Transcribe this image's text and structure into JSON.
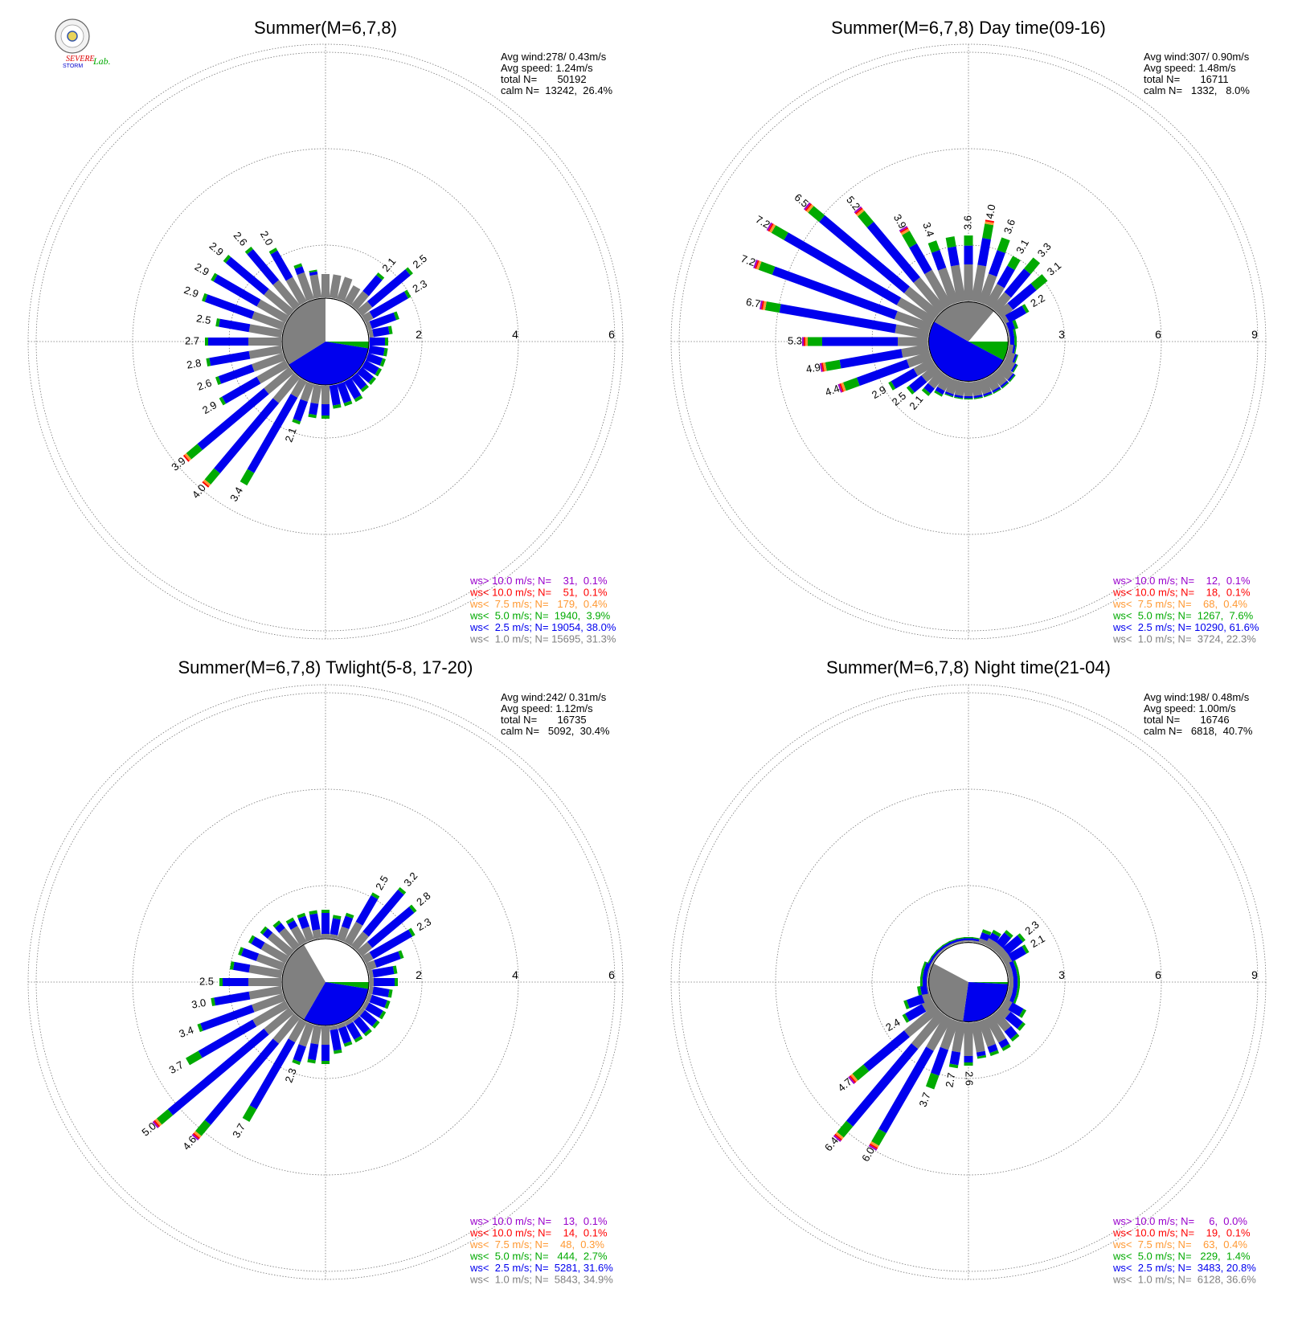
{
  "logo": {
    "text_1": "SEVERE",
    "text_2": "STORM",
    "text_3": "Lab."
  },
  "legend_rows": [
    {
      "text": "ws> 10.0 m/s; N=",
      "color": "#9900cc"
    },
    {
      "text": "ws< 10.0 m/s; N=",
      "color": "#ff0000"
    },
    {
      "text": "ws<  7.5 m/s; N=",
      "color": "#ff9933"
    },
    {
      "text": "ws<  5.0 m/s; N=",
      "color": "#00aa00"
    },
    {
      "text": "ws<  2.5 m/s; N=",
      "color": "#0000ee"
    },
    {
      "text": "ws<  1.0 m/s; N=",
      "color": "#808080"
    }
  ],
  "chart_data": [
    {
      "type": "wind-rose",
      "title": "Summer(M=6,7,8)",
      "stats": [
        "Avg wind:278/ 0.43m/s",
        "Avg speed: 1.24m/s",
        "total N=       50192",
        "calm N=  13242,  26.4%"
      ],
      "radial_ticks": [
        "2",
        "4",
        "6"
      ],
      "rmax": 6,
      "calm_fraction": 0.264,
      "bins": 36,
      "direction_step_deg": 10,
      "legend": [
        [
          "31",
          "0.1%"
        ],
        [
          "51",
          "0.1%"
        ],
        [
          "179",
          "0.4%"
        ],
        [
          "1940",
          "3.9%"
        ],
        [
          "19054",
          "38.0%"
        ],
        [
          "15695",
          "31.3%"
        ]
      ],
      "inner_sectors": [
        {
          "color": "#00aa00",
          "start": 90,
          "end": 99
        },
        {
          "color": "#0000ee",
          "start": 99,
          "end": 238
        },
        {
          "color": "#808080",
          "start": 238,
          "end": 360
        }
      ],
      "spokes": [
        [
          0,
          1.4,
          1.4
        ],
        [
          10,
          1.4,
          1.3
        ],
        [
          20,
          1.4,
          1.3
        ],
        [
          30,
          1.3,
          1.3
        ],
        [
          40,
          1.3,
          1.8,
          "2.1"
        ],
        [
          50,
          1.2,
          2.3,
          "2.5"
        ],
        [
          60,
          1.1,
          2.0,
          "2.3"
        ],
        [
          70,
          1.0,
          1.6
        ],
        [
          80,
          1.0,
          1.4
        ],
        [
          90,
          0.9,
          1.3
        ],
        [
          100,
          0.9,
          1.3
        ],
        [
          110,
          0.9,
          1.3
        ],
        [
          120,
          0.9,
          1.3
        ],
        [
          130,
          0.9,
          1.3
        ],
        [
          140,
          0.9,
          1.3
        ],
        [
          150,
          0.9,
          1.4
        ],
        [
          160,
          0.9,
          1.4
        ],
        [
          170,
          0.9,
          1.4
        ],
        [
          180,
          1.3,
          1.6
        ],
        [
          190,
          1.3,
          1.6
        ],
        [
          200,
          1.3,
          1.8,
          "2.1"
        ],
        [
          210,
          1.3,
          3.4,
          "3.4"
        ],
        [
          220,
          1.6,
          3.8,
          "4.0"
        ],
        [
          230,
          1.6,
          3.7,
          "3.9"
        ],
        [
          240,
          1.6,
          2.5,
          "2.9"
        ],
        [
          250,
          1.6,
          2.4,
          "2.6"
        ],
        [
          260,
          1.6,
          2.5,
          "2.8"
        ],
        [
          270,
          1.6,
          2.5,
          "2.7"
        ],
        [
          280,
          1.6,
          2.3,
          "2.5"
        ],
        [
          290,
          1.6,
          2.7,
          "2.9"
        ],
        [
          300,
          1.6,
          2.7,
          "2.9"
        ],
        [
          310,
          1.6,
          2.7,
          "2.9"
        ],
        [
          320,
          1.6,
          2.5,
          "2.6"
        ],
        [
          330,
          1.5,
          2.2,
          "2.0"
        ],
        [
          340,
          1.5,
          1.7
        ],
        [
          350,
          1.4,
          1.5
        ]
      ]
    },
    {
      "type": "wind-rose",
      "title": "Summer(M=6,7,8) Day time(09-16)",
      "stats": [
        "Avg wind:307/ 0.90m/s",
        "Avg speed: 1.48m/s",
        "total N=       16711",
        "calm N=   1332,   8.0%"
      ],
      "radial_ticks": [
        "3",
        "6",
        "9"
      ],
      "rmax": 9,
      "calm_fraction": 0.08,
      "bins": 36,
      "direction_step_deg": 10,
      "legend": [
        [
          "12",
          "0.1%"
        ],
        [
          "18",
          "0.1%"
        ],
        [
          "68",
          "0.4%"
        ],
        [
          "1267",
          "7.6%"
        ],
        [
          "10290",
          "61.6%"
        ],
        [
          "3724",
          "22.3%"
        ]
      ],
      "inner_sectors": [
        {
          "color": "#00aa00",
          "start": 90,
          "end": 118
        },
        {
          "color": "#0000ee",
          "start": 118,
          "end": 300
        },
        {
          "color": "#808080",
          "start": 300,
          "end": 360
        },
        {
          "color": "#808080",
          "start": 0,
          "end": 40
        }
      ],
      "spokes": [
        [
          0,
          2.4,
          3.3,
          "3.6"
        ],
        [
          10,
          2.4,
          3.7,
          "4.0"
        ],
        [
          20,
          2.2,
          3.4,
          "3.6"
        ],
        [
          30,
          2.0,
          3.0,
          "3.1"
        ],
        [
          40,
          1.9,
          3.3,
          "3.3"
        ],
        [
          50,
          1.7,
          3.1,
          "3.1"
        ],
        [
          60,
          1.4,
          2.1,
          "2.2"
        ],
        [
          70,
          1.3,
          1.6
        ],
        [
          80,
          1.3,
          1.5
        ],
        [
          90,
          1.3,
          1.5
        ],
        [
          100,
          1.4,
          1.5
        ],
        [
          110,
          1.5,
          1.6
        ],
        [
          120,
          1.6,
          1.7
        ],
        [
          130,
          1.7,
          1.8
        ],
        [
          140,
          1.7,
          1.8
        ],
        [
          150,
          1.7,
          1.8
        ],
        [
          160,
          1.7,
          1.8
        ],
        [
          170,
          1.7,
          1.8
        ],
        [
          180,
          1.7,
          1.8
        ],
        [
          190,
          1.7,
          1.8
        ],
        [
          200,
          1.7,
          1.8
        ],
        [
          210,
          1.7,
          1.9
        ],
        [
          220,
          1.8,
          2.1,
          "2.1"
        ],
        [
          230,
          1.8,
          2.4,
          "2.5"
        ],
        [
          240,
          1.9,
          2.8,
          "2.9"
        ],
        [
          250,
          2.0,
          4.1,
          "4.4"
        ],
        [
          260,
          2.1,
          4.5,
          "4.9"
        ],
        [
          270,
          2.2,
          5.0,
          "5.3"
        ],
        [
          280,
          2.3,
          6.4,
          "6.7"
        ],
        [
          290,
          2.4,
          6.9,
          "7.2"
        ],
        [
          300,
          2.5,
          7.0,
          "7.2"
        ],
        [
          310,
          2.5,
          6.4,
          "6.5"
        ],
        [
          320,
          2.5,
          5.2,
          "5.2"
        ],
        [
          330,
          2.5,
          3.9,
          "3.9"
        ],
        [
          340,
          2.4,
          3.3,
          "3.4"
        ],
        [
          350,
          2.4,
          3.3
        ]
      ]
    },
    {
      "type": "wind-rose",
      "title": "Summer(M=6,7,8) Twlight(5-8, 17-20)",
      "stats": [
        "Avg wind:242/ 0.31m/s",
        "Avg speed: 1.12m/s",
        "total N=       16735",
        "calm N=   5092,  30.4%"
      ],
      "radial_ticks": [
        "2",
        "4",
        "6"
      ],
      "rmax": 6,
      "calm_fraction": 0.304,
      "bins": 36,
      "direction_step_deg": 10,
      "legend": [
        [
          "13",
          "0.1%"
        ],
        [
          "14",
          "0.1%"
        ],
        [
          "48",
          "0.3%"
        ],
        [
          "444",
          "2.7%"
        ],
        [
          "5281",
          "31.6%"
        ],
        [
          "5843",
          "34.9%"
        ]
      ],
      "inner_sectors": [
        {
          "color": "#00aa00",
          "start": 90,
          "end": 99
        },
        {
          "color": "#0000ee",
          "start": 99,
          "end": 210
        },
        {
          "color": "#808080",
          "start": 210,
          "end": 330
        }
      ],
      "spokes": [
        [
          0,
          1.0,
          1.5
        ],
        [
          10,
          1.0,
          1.4
        ],
        [
          20,
          1.2,
          1.5
        ],
        [
          30,
          1.4,
          2.1,
          "2.5"
        ],
        [
          40,
          1.3,
          2.5,
          "3.2"
        ],
        [
          50,
          1.2,
          2.4,
          "2.8"
        ],
        [
          60,
          1.1,
          2.1,
          "2.3"
        ],
        [
          70,
          1.1,
          1.7
        ],
        [
          80,
          1.0,
          1.5
        ],
        [
          90,
          1.0,
          1.5
        ],
        [
          100,
          1.0,
          1.4
        ],
        [
          110,
          1.0,
          1.4
        ],
        [
          120,
          1.0,
          1.4
        ],
        [
          130,
          1.0,
          1.4
        ],
        [
          140,
          1.0,
          1.4
        ],
        [
          150,
          1.0,
          1.4
        ],
        [
          160,
          1.0,
          1.4
        ],
        [
          170,
          1.0,
          1.5
        ],
        [
          180,
          1.3,
          1.7
        ],
        [
          190,
          1.3,
          1.7
        ],
        [
          200,
          1.4,
          1.8,
          "2.3"
        ],
        [
          210,
          1.4,
          3.3,
          "3.7"
        ],
        [
          220,
          1.6,
          4.1,
          "4.6"
        ],
        [
          230,
          1.6,
          4.5,
          "5.0"
        ],
        [
          240,
          1.7,
          3.3,
          "3.7"
        ],
        [
          250,
          1.6,
          2.8,
          "3.4"
        ],
        [
          260,
          1.6,
          2.4,
          "3.0"
        ],
        [
          270,
          1.6,
          2.2,
          "2.5"
        ],
        [
          280,
          1.6,
          2.0
        ],
        [
          290,
          1.5,
          1.9
        ],
        [
          300,
          1.5,
          1.8
        ],
        [
          310,
          1.5,
          1.7
        ],
        [
          320,
          1.4,
          1.6
        ],
        [
          330,
          1.3,
          1.5
        ],
        [
          340,
          1.2,
          1.5
        ],
        [
          350,
          1.1,
          1.5
        ]
      ]
    },
    {
      "type": "wind-rose",
      "title": "Summer(M=6,7,8) Night time(21-04)",
      "stats": [
        "Avg wind:198/ 0.48m/s",
        "Avg speed: 1.00m/s",
        "total N=       16746",
        "calm N=   6818,  40.7%"
      ],
      "radial_ticks": [
        "3",
        "6",
        "9"
      ],
      "rmax": 9,
      "calm_fraction": 0.407,
      "bins": 36,
      "direction_step_deg": 10,
      "legend": [
        [
          "6",
          "0.0%"
        ],
        [
          "19",
          "0.1%"
        ],
        [
          "63",
          "0.4%"
        ],
        [
          "229",
          "1.4%"
        ],
        [
          "3483",
          "20.8%"
        ],
        [
          "6128",
          "36.6%"
        ]
      ],
      "inner_sectors": [
        {
          "color": "#00aa00",
          "start": 90,
          "end": 93
        },
        {
          "color": "#0000ee",
          "start": 93,
          "end": 188
        },
        {
          "color": "#808080",
          "start": 188,
          "end": 298
        }
      ],
      "spokes": [
        [
          0,
          1.3,
          1.4
        ],
        [
          10,
          1.3,
          1.4
        ],
        [
          20,
          1.4,
          1.7
        ],
        [
          30,
          1.5,
          1.8
        ],
        [
          40,
          1.5,
          2.0
        ],
        [
          50,
          1.5,
          2.2,
          "2.3"
        ],
        [
          60,
          1.5,
          2.1,
          "2.1"
        ],
        [
          70,
          1.4,
          1.6
        ],
        [
          80,
          1.4,
          1.6
        ],
        [
          90,
          1.4,
          1.6
        ],
        [
          100,
          1.4,
          1.6
        ],
        [
          110,
          1.4,
          1.6
        ],
        [
          120,
          1.5,
          2.0
        ],
        [
          130,
          1.6,
          2.2
        ],
        [
          140,
          1.9,
          2.3
        ],
        [
          150,
          2.1,
          2.4
        ],
        [
          160,
          2.1,
          2.4
        ],
        [
          170,
          2.2,
          2.4
        ],
        [
          180,
          2.3,
          2.6,
          "2.6"
        ],
        [
          190,
          2.2,
          2.7,
          "2.7"
        ],
        [
          200,
          2.2,
          3.5,
          "3.7"
        ],
        [
          210,
          2.4,
          5.8,
          "6.0"
        ],
        [
          220,
          2.6,
          6.2,
          "6.4"
        ],
        [
          230,
          2.5,
          4.6,
          "4.7"
        ],
        [
          240,
          1.6,
          2.3,
          "2.4"
        ],
        [
          250,
          1.5,
          2.1
        ],
        [
          260,
          1.3,
          1.6
        ],
        [
          270,
          1.3,
          1.5
        ],
        [
          280,
          1.3,
          1.5
        ],
        [
          290,
          1.3,
          1.5
        ],
        [
          300,
          1.3,
          1.4
        ],
        [
          310,
          1.3,
          1.4
        ],
        [
          320,
          1.3,
          1.4
        ],
        [
          330,
          1.3,
          1.4
        ],
        [
          340,
          1.3,
          1.4
        ],
        [
          350,
          1.3,
          1.4
        ]
      ]
    }
  ]
}
